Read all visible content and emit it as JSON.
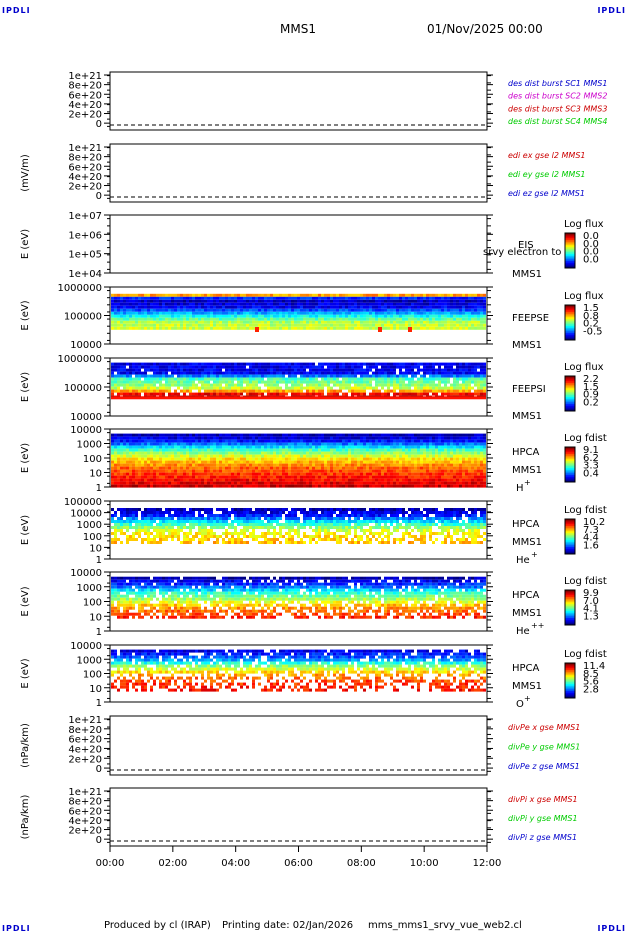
{
  "corners": {
    "tl": "IPDLI",
    "tr": "IPDLI",
    "bl": "IPDLI",
    "br": "IPDLI"
  },
  "header": {
    "mission": "MMS1",
    "date": "01/Nov/2025 00:00"
  },
  "footer": {
    "produced": "Produced by cl (IRAP)",
    "printing": "Printing date: 02/Jan/2026",
    "file": "mms_mms1_srvy_vue_web2.cl"
  },
  "colors": {
    "black": "#000000",
    "blue": "#0000cc",
    "magenta": "#cc00cc",
    "red": "#cc0000",
    "green": "#00cc00"
  },
  "chart_data": [
    {
      "id": "p1",
      "type": "line",
      "ylabel": "",
      "ylim": [
        0,
        1.2e+21
      ],
      "ticks": [
        "1e+21",
        "8e+20",
        "6e+20",
        "4e+20",
        "2e+20",
        "0"
      ],
      "legend": [
        {
          "text": "des dist burst SC1 MMS1",
          "color": "#0000cc"
        },
        {
          "text": "des dist burst SC2 MMS2",
          "color": "#cc00cc"
        },
        {
          "text": "des dist burst SC3 MMS3",
          "color": "#cc0000"
        },
        {
          "text": "des dist burst SC4 MMS4",
          "color": "#00cc00"
        }
      ]
    },
    {
      "id": "p2",
      "type": "line",
      "ylabel": "(mV/m)",
      "ylim": [
        0,
        1.2e+21
      ],
      "ticks": [
        "1e+21",
        "8e+20",
        "6e+20",
        "4e+20",
        "2e+20",
        "0"
      ],
      "legend": [
        {
          "text": "edi ex gse l2 MMS1",
          "color": "#cc0000"
        },
        {
          "text": "edi ey gse l2 MMS1",
          "color": "#00cc00"
        },
        {
          "text": "edi ez gse l2 MMS1",
          "color": "#0000cc"
        }
      ]
    },
    {
      "id": "p3",
      "type": "heatmap",
      "ylabel": "E (eV)",
      "ticks": [
        "1e+07",
        "1e+06",
        "1e+05",
        "1e+04"
      ],
      "labels": [
        "EIS",
        "MMS1"
      ],
      "overlay": "srvy electron to",
      "cbar_title": "Log flux",
      "cbar_ticks": [
        "0.0",
        "0.0",
        "0.0",
        "0.0"
      ]
    },
    {
      "id": "p4",
      "type": "heatmap",
      "ylabel": "E (eV)",
      "ticks": [
        "1000000",
        "100000",
        "10000"
      ],
      "labels": [
        "FEEPSE",
        "MMS1"
      ],
      "cbar_title": "Log flux",
      "cbar_ticks": [
        "1.5",
        "0.8",
        "0.2",
        "-0.5"
      ]
    },
    {
      "id": "p5",
      "type": "heatmap",
      "ylabel": "E (eV)",
      "ticks": [
        "1000000",
        "100000",
        "10000"
      ],
      "labels": [
        "FEEPSI",
        "MMS1"
      ],
      "cbar_title": "Log flux",
      "cbar_ticks": [
        "2.2",
        "1.5",
        "0.9",
        "0.2"
      ]
    },
    {
      "id": "p6",
      "type": "heatmap",
      "ylabel": "E (eV)",
      "ticks": [
        "10000",
        "1000",
        "100",
        "10",
        "1"
      ],
      "labels": [
        "HPCA",
        "MMS1"
      ],
      "species": "H",
      "species_sup": "+",
      "cbar_title": "Log fdist",
      "cbar_ticks": [
        "9.1",
        "6.2",
        "3.3",
        "0.4"
      ]
    },
    {
      "id": "p7",
      "type": "heatmap",
      "ylabel": "E (eV)",
      "ticks": [
        "100000",
        "10000",
        "1000",
        "100",
        "10",
        "1"
      ],
      "labels": [
        "HPCA",
        "MMS1"
      ],
      "species": "He",
      "species_sup": "+",
      "cbar_title": "Log fdist",
      "cbar_ticks": [
        "10.2",
        "7.3",
        "4.4",
        "1.6"
      ]
    },
    {
      "id": "p8",
      "type": "heatmap",
      "ylabel": "E (eV)",
      "ticks": [
        "10000",
        "1000",
        "100",
        "10",
        "1"
      ],
      "labels": [
        "HPCA",
        "MMS1"
      ],
      "species": "He",
      "species_sup": "++",
      "cbar_title": "Log fdist",
      "cbar_ticks": [
        "9.9",
        "7.0",
        "4.1",
        "1.3"
      ]
    },
    {
      "id": "p9",
      "type": "heatmap",
      "ylabel": "E (eV)",
      "ticks": [
        "10000",
        "1000",
        "100",
        "10",
        "1"
      ],
      "labels": [
        "HPCA",
        "MMS1"
      ],
      "species": "O",
      "species_sup": "+",
      "cbar_title": "Log fdist",
      "cbar_ticks": [
        "11.4",
        "8.5",
        "5.6",
        "2.8"
      ]
    },
    {
      "id": "p10",
      "type": "line",
      "ylabel": "(nPa/km)",
      "ylim": [
        0,
        1.2e+21
      ],
      "ticks": [
        "1e+21",
        "8e+20",
        "6e+20",
        "4e+20",
        "2e+20",
        "0"
      ],
      "legend": [
        {
          "text": "divPe x gse MMS1",
          "color": "#cc0000"
        },
        {
          "text": "divPe y gse MMS1",
          "color": "#00cc00"
        },
        {
          "text": "divPe z gse MMS1",
          "color": "#0000cc"
        }
      ]
    },
    {
      "id": "p11",
      "type": "line",
      "ylabel": "(nPa/km)",
      "ylim": [
        0,
        1.2e+21
      ],
      "ticks": [
        "1e+21",
        "8e+20",
        "6e+20",
        "4e+20",
        "2e+20",
        "0"
      ],
      "legend": [
        {
          "text": "divPi x gse MMS1",
          "color": "#cc0000"
        },
        {
          "text": "divPi y gse MMS1",
          "color": "#00cc00"
        },
        {
          "text": "divPi z gse MMS1",
          "color": "#0000cc"
        }
      ]
    }
  ],
  "xaxis": {
    "ticks": [
      "00:00",
      "02:00",
      "04:00",
      "06:00",
      "08:00",
      "10:00",
      "12:00"
    ]
  }
}
